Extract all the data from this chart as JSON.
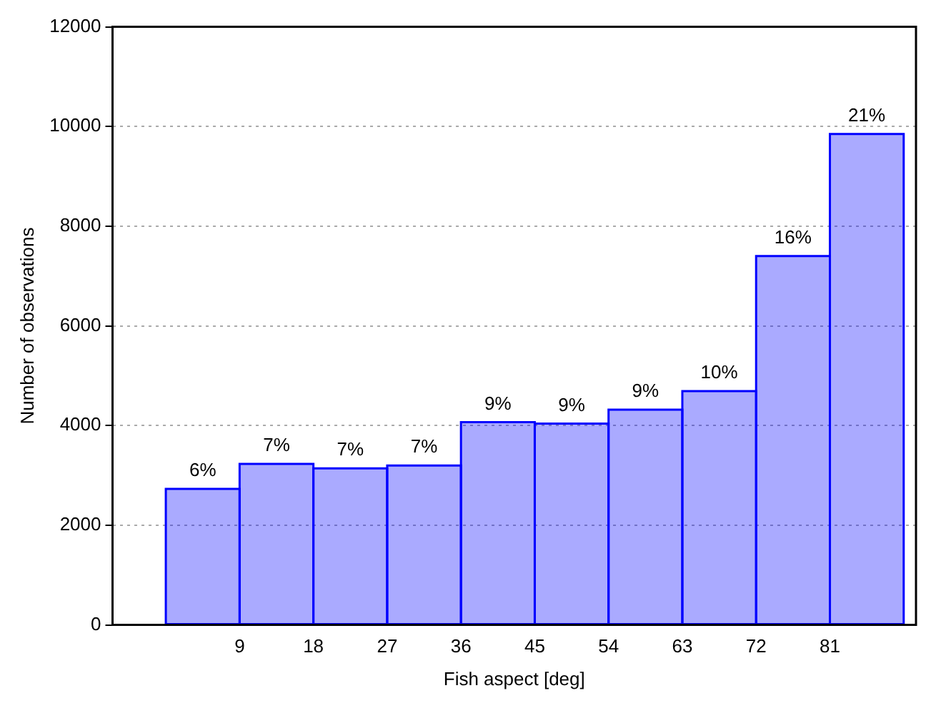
{
  "chart_data": {
    "type": "histogram",
    "xlabel": "Fish aspect [deg]",
    "ylabel": "Number of observations",
    "bins": [
      0,
      9,
      18,
      27,
      36,
      45,
      54,
      63,
      72,
      81,
      90
    ],
    "values": [
      2730,
      3230,
      3140,
      3200,
      4070,
      4040,
      4320,
      4690,
      7400,
      9850
    ],
    "annotations": [
      {
        "text": "6%",
        "x": 4.5,
        "y": 2730
      },
      {
        "text": "7%",
        "x": 13.5,
        "y": 3230
      },
      {
        "text": "7%",
        "x": 22.5,
        "y": 3140
      },
      {
        "text": "7%",
        "x": 31.5,
        "y": 3200
      },
      {
        "text": "9%",
        "x": 40.5,
        "y": 4070
      },
      {
        "text": "9%",
        "x": 49.5,
        "y": 4040
      },
      {
        "text": "9%",
        "x": 58.5,
        "y": 4320
      },
      {
        "text": "10%",
        "x": 67.5,
        "y": 4690
      },
      {
        "text": "16%",
        "x": 76.5,
        "y": 7400
      },
      {
        "text": "21%",
        "x": 85.5,
        "y": 9850
      }
    ],
    "color": "#0000ff",
    "xlim": [
      -6.5,
      91.5
    ],
    "xticks": [
      9,
      18,
      27,
      36,
      45,
      54,
      63,
      72,
      81
    ],
    "ylim": [
      0,
      12000
    ],
    "yticks": [
      0,
      2000,
      4000,
      6000,
      8000,
      10000,
      12000
    ],
    "grid": "y",
    "legend": false
  }
}
